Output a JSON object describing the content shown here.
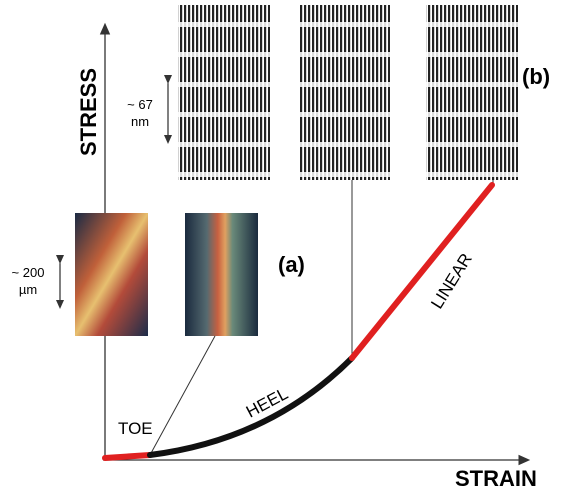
{
  "axes": {
    "y_label": "STRESS",
    "x_label": "STRAIN"
  },
  "panels": {
    "a": "(a)",
    "b": "(b)"
  },
  "regions": {
    "toe": "TOE",
    "heel": "HEEL",
    "linear": "LINEAR"
  },
  "scale_bars": {
    "nano": [
      "~ 67",
      "nm"
    ],
    "micro": [
      "~ 200",
      "µm"
    ]
  }
}
